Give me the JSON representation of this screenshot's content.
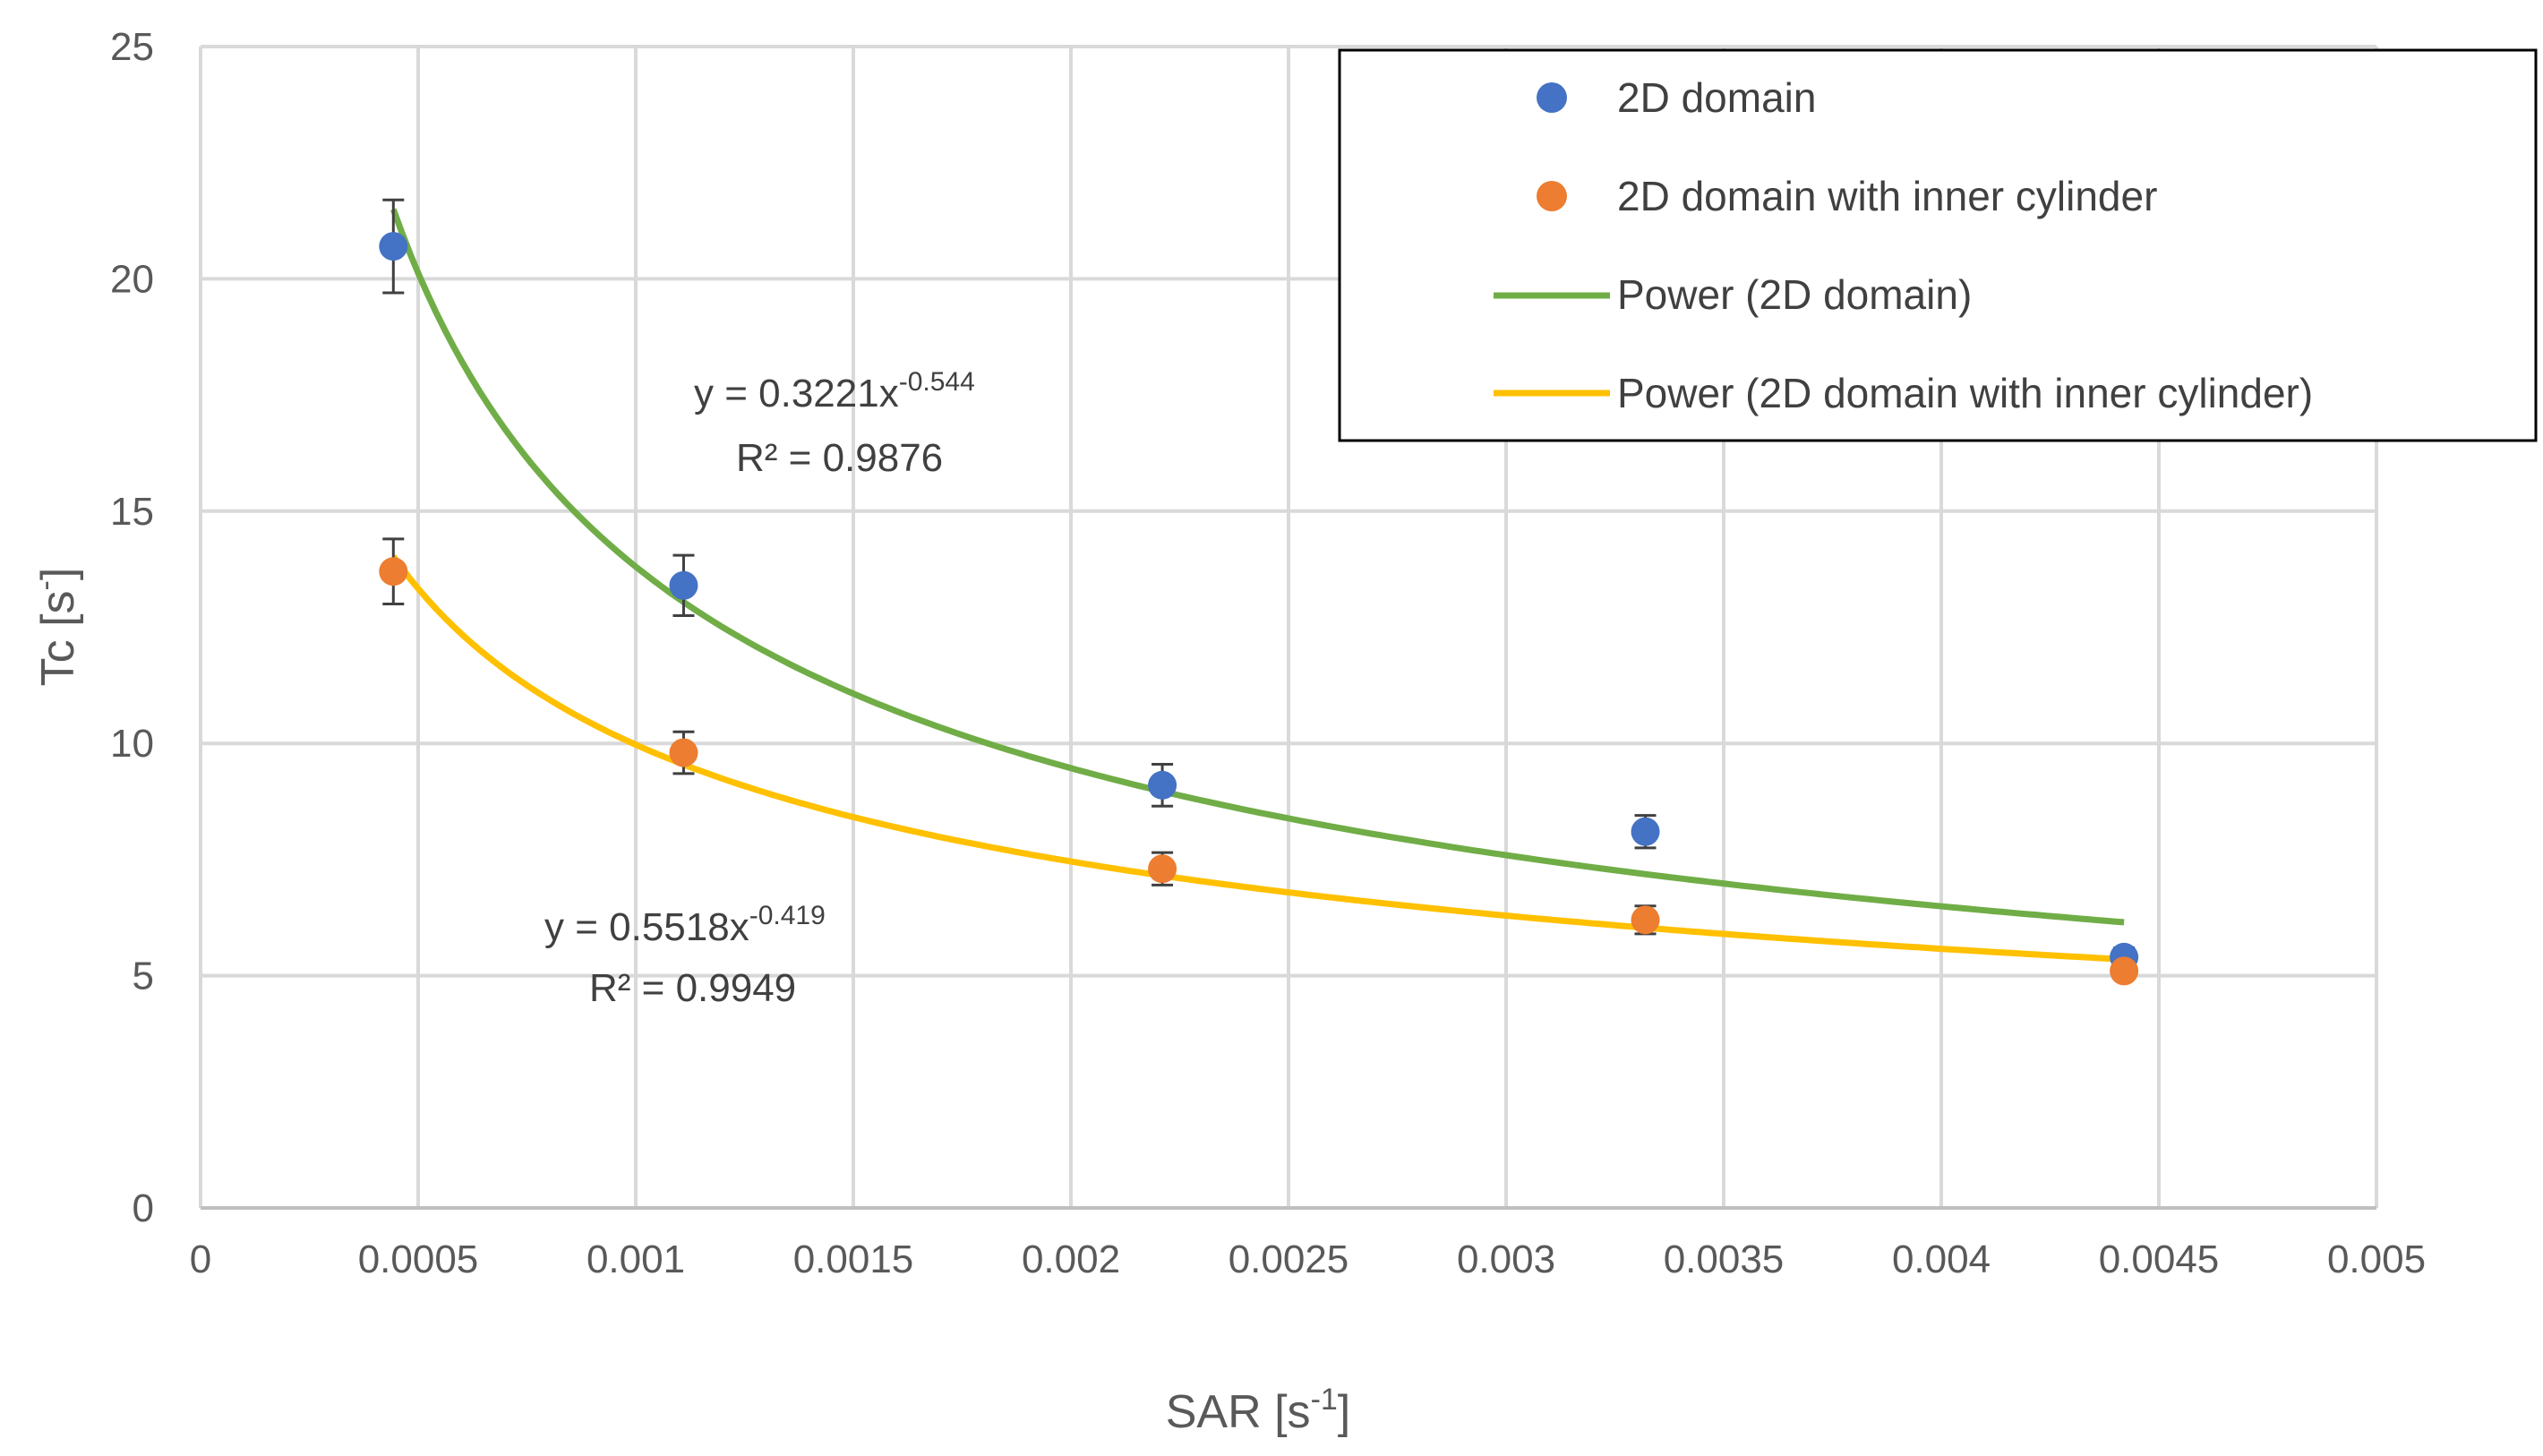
{
  "chart_data": {
    "type": "scatter",
    "title": "",
    "xlabel": "SAR [s",
    "xlabel_sup": "-1",
    "xlabel_close": "]",
    "ylabel": "Tc  [s",
    "ylabel_sup": "-",
    "ylabel_close": "]",
    "xlim": [
      0,
      0.005
    ],
    "ylim": [
      0,
      25
    ],
    "xticks": [
      0,
      0.0005,
      0.001,
      0.0015,
      0.002,
      0.0025,
      0.003,
      0.0035,
      0.004,
      0.0045,
      0.005
    ],
    "xtick_labels": [
      "0",
      "0.0005",
      "0.001",
      "0.0015",
      "0.002",
      "0.0025",
      "0.003",
      "0.0035",
      "0.004",
      "0.0045",
      "0.005"
    ],
    "yticks": [
      0,
      5,
      10,
      15,
      20,
      25
    ],
    "ytick_labels": [
      "0",
      "5",
      "10",
      "15",
      "20",
      "25"
    ],
    "grid": true,
    "legend_position": "top-right",
    "series": [
      {
        "name": "2D domain",
        "color": "#4472C4",
        "x": [
          0.000443,
          0.00111,
          0.00221,
          0.00332,
          0.00442
        ],
        "y": [
          20.7,
          13.4,
          9.1,
          8.1,
          5.4
        ],
        "err": [
          1.0,
          0.65,
          0.45,
          0.35,
          0.2
        ]
      },
      {
        "name": "2D domain with inner cylinder",
        "color": "#ED7D31",
        "x": [
          0.000443,
          0.00111,
          0.00221,
          0.00332,
          0.00442
        ],
        "y": [
          13.7,
          9.8,
          7.3,
          6.2,
          5.1
        ],
        "err": [
          0.7,
          0.45,
          0.35,
          0.3,
          0.15
        ]
      }
    ],
    "trendlines": [
      {
        "name": "Power (2D domain)",
        "color": "#70AD47",
        "a": 0.3221,
        "b": -0.544,
        "x_range": [
          0.000443,
          0.00442
        ],
        "eq_main": "y = 0.3221x",
        "eq_exp": "-0.544",
        "r2": "R² = 0.9876"
      },
      {
        "name": "Power (2D domain with inner cylinder)",
        "color": "#FFC000",
        "a": 0.5518,
        "b": -0.419,
        "x_range": [
          0.000443,
          0.00442
        ],
        "eq_main": "y = 0.5518x",
        "eq_exp": "-0.419",
        "r2": "R² = 0.9949"
      }
    ]
  }
}
